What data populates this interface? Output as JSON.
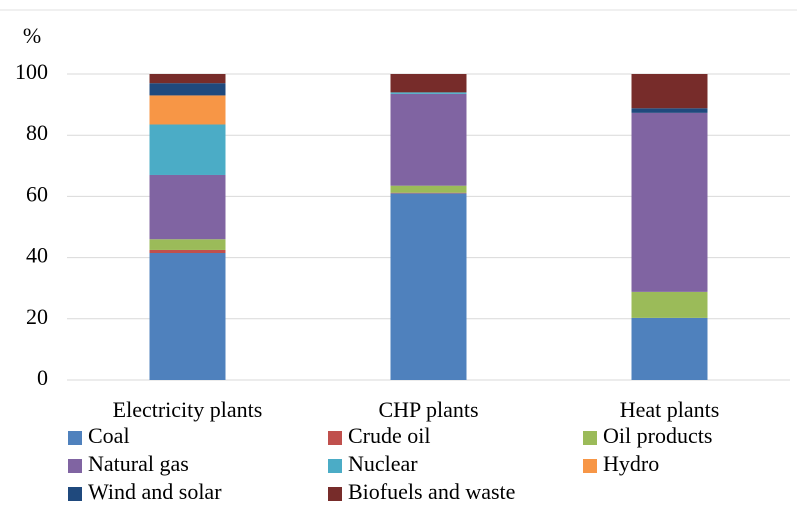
{
  "chart_data": {
    "type": "stacked_bar",
    "y_label": "%",
    "categories": [
      "Electricity plants",
      "CHP plants",
      "Heat plants"
    ],
    "series": [
      {
        "name": "Coal",
        "color": "#4f81bd",
        "values": [
          41.5,
          61,
          20.3
        ]
      },
      {
        "name": "Crude oil",
        "color": "#c0504d",
        "values": [
          1,
          0.2,
          0
        ]
      },
      {
        "name": "Oil products",
        "color": "#9bbb59",
        "values": [
          3.5,
          2.3,
          8.5
        ]
      },
      {
        "name": "Natural gas",
        "color": "#8064a2",
        "values": [
          21,
          30,
          58.5
        ]
      },
      {
        "name": "Nuclear",
        "color": "#4bacc6",
        "values": [
          16.5,
          0.5,
          0
        ]
      },
      {
        "name": "Hydro",
        "color": "#f79646",
        "values": [
          9.5,
          0,
          0
        ]
      },
      {
        "name": "Wind and solar",
        "color": "#1f497d",
        "values": [
          4,
          0,
          1.5
        ]
      },
      {
        "name": "Biofuels and waste",
        "color": "#772c2a",
        "values": [
          3,
          6,
          11.2
        ]
      }
    ],
    "ylim": [
      0,
      100
    ],
    "yticks": [
      0,
      20,
      40,
      60,
      80,
      100
    ],
    "grid": true,
    "legend": "bottom"
  }
}
